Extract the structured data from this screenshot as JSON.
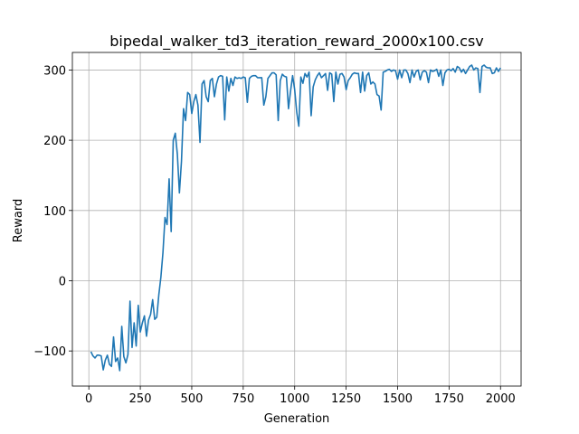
{
  "chart_data": {
    "type": "line",
    "title": "bipedal_walker_td3_iteration_reward_2000x100.csv",
    "xlabel": "Generation",
    "ylabel": "Reward",
    "xlim": [
      -80,
      2100
    ],
    "ylim": [
      -150,
      325
    ],
    "xticks": [
      0,
      250,
      500,
      750,
      1000,
      1250,
      1500,
      1750,
      2000
    ],
    "yticks": [
      -100,
      0,
      100,
      200,
      300
    ],
    "grid": true,
    "line_color": "#1f77b4",
    "series": [
      {
        "x": [
          10,
          20,
          30,
          40,
          50,
          60,
          70,
          80,
          90,
          100,
          110,
          120,
          130,
          140,
          150,
          160,
          170,
          180,
          190,
          200,
          210,
          220,
          230,
          240,
          250,
          260,
          270,
          280,
          290,
          300,
          310,
          320,
          330,
          340,
          350,
          360,
          370,
          380,
          390,
          400,
          410,
          420,
          430,
          440,
          450,
          460,
          470,
          480,
          490,
          500,
          510,
          520,
          530,
          540,
          550,
          560,
          570,
          580,
          590,
          600,
          610,
          620,
          630,
          640,
          650,
          660,
          670,
          680,
          690,
          700,
          710,
          720,
          730,
          740,
          750,
          760,
          770,
          780,
          790,
          800,
          810,
          820,
          830,
          840,
          850,
          860,
          870,
          880,
          890,
          900,
          910,
          920,
          930,
          940,
          950,
          960,
          970,
          980,
          990,
          1000,
          1010,
          1020,
          1030,
          1040,
          1050,
          1060,
          1070,
          1080,
          1090,
          1100,
          1110,
          1120,
          1130,
          1140,
          1150,
          1160,
          1170,
          1180,
          1190,
          1200,
          1210,
          1220,
          1230,
          1240,
          1250,
          1260,
          1270,
          1280,
          1290,
          1300,
          1310,
          1320,
          1330,
          1340,
          1350,
          1360,
          1370,
          1380,
          1390,
          1400,
          1410,
          1420,
          1430,
          1440,
          1450,
          1460,
          1470,
          1480,
          1490,
          1500,
          1510,
          1520,
          1530,
          1540,
          1550,
          1560,
          1570,
          1580,
          1590,
          1600,
          1610,
          1620,
          1630,
          1640,
          1650,
          1660,
          1670,
          1680,
          1690,
          1700,
          1710,
          1720,
          1730,
          1740,
          1750,
          1760,
          1770,
          1780,
          1790,
          1800,
          1810,
          1820,
          1830,
          1840,
          1850,
          1860,
          1870,
          1880,
          1890,
          1900,
          1910,
          1920,
          1930,
          1940,
          1950,
          1960,
          1970,
          1980,
          1990,
          2000
        ],
        "y": [
          -101,
          -107,
          -110,
          -106,
          -106,
          -107,
          -127,
          -113,
          -106,
          -119,
          -122,
          -80,
          -115,
          -110,
          -128,
          -65,
          -108,
          -117,
          -105,
          -29,
          -95,
          -60,
          -93,
          -35,
          -73,
          -60,
          -50,
          -79,
          -56,
          -48,
          -27,
          -55,
          -52,
          -20,
          5,
          40,
          90,
          80,
          145,
          70,
          200,
          210,
          180,
          125,
          170,
          245,
          228,
          268,
          265,
          238,
          255,
          265,
          250,
          197,
          280,
          285,
          262,
          255,
          285,
          288,
          262,
          280,
          290,
          292,
          291,
          229,
          290,
          270,
          288,
          278,
          290,
          288,
          289,
          288,
          290,
          289,
          254,
          288,
          291,
          292,
          292,
          289,
          289,
          289,
          250,
          262,
          288,
          292,
          296,
          296,
          293,
          228,
          285,
          294,
          291,
          290,
          245,
          270,
          292,
          272,
          240,
          220,
          290,
          281,
          295,
          290,
          297,
          235,
          276,
          286,
          292,
          296,
          289,
          292,
          295,
          271,
          296,
          294,
          255,
          297,
          280,
          294,
          295,
          290,
          272,
          285,
          289,
          294,
          296,
          295,
          295,
          268,
          297,
          270,
          292,
          296,
          280,
          283,
          280,
          265,
          263,
          243,
          297,
          298,
          300,
          301,
          298,
          300,
          299,
          287,
          300,
          289,
          300,
          300,
          295,
          282,
          300,
          290,
          298,
          300,
          286,
          297,
          299,
          297,
          282,
          300,
          298,
          299,
          301,
          291,
          300,
          278,
          296,
          300,
          301,
          299,
          302,
          297,
          305,
          303,
          297,
          301,
          295,
          300,
          305,
          307,
          300,
          303,
          302,
          268,
          305,
          307,
          304,
          303,
          303,
          295,
          296,
          303,
          298,
          303
        ],
        "note": "approximate"
      }
    ]
  }
}
